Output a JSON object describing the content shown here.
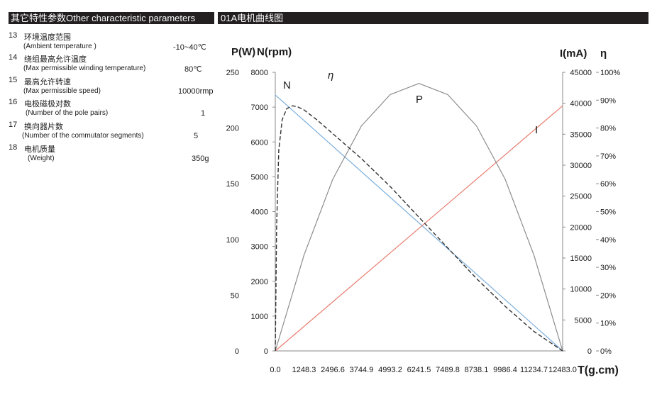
{
  "header": {
    "left": "其它特性参数Other characteristic parameters",
    "right": "01A电机曲线图"
  },
  "params": [
    {
      "num": "13",
      "zh": "环境温度范围",
      "en": "(Ambient  temperature )",
      "value": "-10~40℃"
    },
    {
      "num": "14",
      "zh": "绕组最高允许温度",
      "en": "(Max permissible winding temperature)",
      "value": "80℃"
    },
    {
      "num": "15",
      "zh": "最高允许转速",
      "en": "(Max permissible speed)",
      "value": "10000rmp"
    },
    {
      "num": "16",
      "zh": "电极磁极对数",
      "en": "(Number of  the pole pairs)",
      "value": "1"
    },
    {
      "num": "17",
      "zh": "换向器片数",
      "en": "(Number of the  commutator  segments)",
      "value": "5"
    },
    {
      "num": "18",
      "zh": "电机质量",
      "en": "(Weight)",
      "value": "350g"
    }
  ],
  "chart_data": {
    "type": "line",
    "title": "",
    "xlabel": "T(g.cm)",
    "xlim": [
      0,
      12483
    ],
    "x_ticks": [
      "0.0",
      "1248.3",
      "2496.6",
      "3744.9",
      "4993.2",
      "6241.5",
      "7489.8",
      "8738.1",
      "9986.4",
      "11234.7",
      "12483.0"
    ],
    "axes": {
      "p": {
        "label": "P(W)",
        "lim": [
          0,
          250
        ],
        "ticks": [
          "0",
          "50",
          "100",
          "150",
          "200",
          "250"
        ]
      },
      "n": {
        "label": "N(rpm)",
        "lim": [
          0,
          8000
        ],
        "ticks": [
          "0",
          "1000",
          "2000",
          "3000",
          "4000",
          "5000",
          "6000",
          "7000",
          "8000"
        ]
      },
      "i": {
        "label": "I(mA)",
        "lim": [
          0,
          45000
        ],
        "ticks": [
          "0",
          "5000",
          "10000",
          "15000",
          "20000",
          "25000",
          "30000",
          "35000",
          "40000",
          "45000"
        ]
      },
      "eta": {
        "label": "η",
        "lim": [
          0,
          100
        ],
        "ticks": [
          "0%",
          "10%",
          "20%",
          "30%",
          "40%",
          "50%",
          "60%",
          "70%",
          "80%",
          "90%",
          "100%"
        ]
      }
    },
    "series": [
      {
        "name": "N",
        "axis": "n",
        "color": "#7aaedc",
        "style": "solid",
        "x": [
          0,
          12483
        ],
        "y": [
          7350,
          0
        ]
      },
      {
        "name": "I",
        "axis": "i",
        "color": "#e87d70",
        "style": "solid",
        "x": [
          0,
          12483
        ],
        "y": [
          0,
          39600
        ]
      },
      {
        "name": "P",
        "axis": "p",
        "color": "#8c8c8c",
        "style": "solid",
        "x": [
          0,
          1248.3,
          2496.6,
          3744.9,
          4993.2,
          6241.5,
          7489.8,
          8738.1,
          9986.4,
          11234.7,
          12483
        ],
        "y": [
          0,
          86,
          154,
          202,
          230,
          240,
          230,
          202,
          154,
          86,
          0
        ]
      },
      {
        "name": "η",
        "axis": "eta",
        "color": "#333333",
        "style": "dashed",
        "x": [
          0,
          60,
          150,
          300,
          500,
          750,
          1000,
          1248.3,
          1800,
          2496.6,
          3744.9,
          4993.2,
          6241.5,
          7489.8,
          8738.1,
          9986.4,
          11234.7,
          12483
        ],
        "y": [
          0,
          45,
          72,
          83,
          87,
          88,
          87.5,
          86.5,
          83,
          78,
          69,
          59,
          48,
          37,
          26,
          16,
          7,
          0
        ]
      }
    ]
  }
}
